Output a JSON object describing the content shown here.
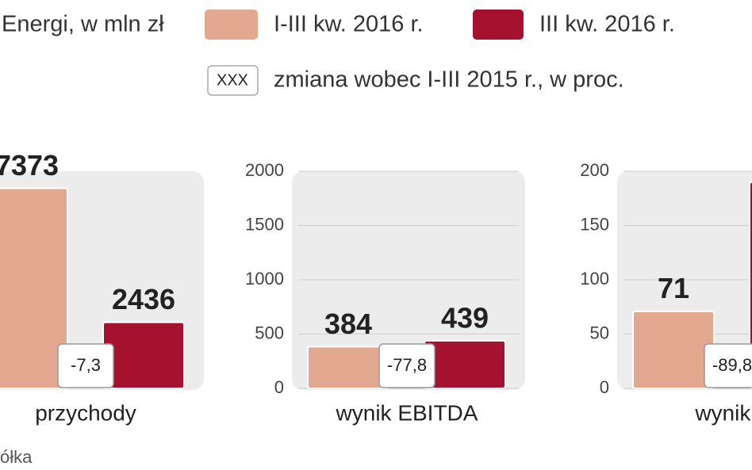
{
  "title": "Energi, w mln zł",
  "change_box": "XXX",
  "change_description": "zmiana wobec I-III 2015 r., w proc.",
  "source": "ółka",
  "chart_data": [
    {
      "type": "bar",
      "xlabel": "przychody",
      "ylim": [
        0,
        8000
      ],
      "series": [
        {
          "name": "I-III kw. 2016 r.",
          "color": "#e3a890",
          "values": [
            7373
          ]
        },
        {
          "name": "III kw. 2016 r.",
          "color": "#a5122f",
          "values": [
            2436
          ]
        }
      ],
      "change": {
        "value": -7.3,
        "label": "-7,3"
      }
    },
    {
      "type": "bar",
      "xlabel": "wynik EBITDA",
      "ylim": [
        0,
        2000
      ],
      "yticks": [
        0,
        500,
        1000,
        1500,
        2000
      ],
      "series": [
        {
          "name": "I-III kw. 2016 r.",
          "color": "#e3a890",
          "values": [
            384
          ]
        },
        {
          "name": "III kw. 2016 r.",
          "color": "#a5122f",
          "values": [
            439
          ]
        }
      ],
      "change": {
        "value": -77.8,
        "label": "-77,8"
      }
    },
    {
      "type": "bar",
      "xlabel": "wynik n",
      "ylim": [
        0,
        200
      ],
      "yticks": [
        0,
        50,
        100,
        150,
        200
      ],
      "series": [
        {
          "name": "I-III kw. 2016 r.",
          "color": "#e3a890",
          "values": [
            71
          ]
        },
        {
          "name": "III kw. 2016 r.",
          "color": "#a5122f",
          "values": [
            190
          ],
          "value_labels": [
            null
          ]
        }
      ],
      "change": {
        "value": -89.8,
        "label": "-89,8"
      }
    }
  ]
}
